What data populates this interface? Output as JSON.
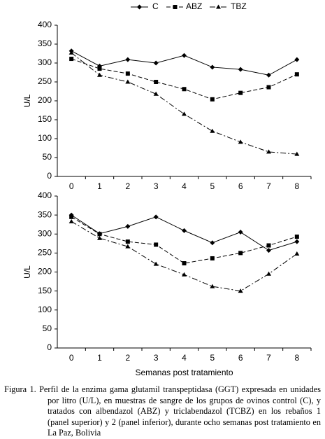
{
  "chart_data": [
    {
      "type": "line",
      "categories": [
        "0",
        "1",
        "2",
        "3",
        "4",
        "5",
        "6",
        "7",
        "8"
      ],
      "ylabel": "U/L",
      "ylim": [
        0,
        400
      ],
      "yticks": [
        0,
        50,
        100,
        150,
        200,
        250,
        300,
        350,
        400
      ],
      "series": [
        {
          "name": "C",
          "color": "#000000",
          "marker": "diamond",
          "dash": "solid",
          "values": [
            332,
            292,
            309,
            300,
            320,
            289,
            283,
            268,
            309
          ]
        },
        {
          "name": "ABZ",
          "color": "#000000",
          "marker": "square",
          "dash": "dashed",
          "values": [
            311,
            285,
            272,
            250,
            231,
            204,
            221,
            236,
            270
          ]
        },
        {
          "name": "TBZ",
          "color": "#000000",
          "marker": "triangle",
          "dash": "dashdot",
          "values": [
            327,
            268,
            250,
            218,
            165,
            120,
            91,
            65,
            59
          ]
        }
      ]
    },
    {
      "type": "line",
      "categories": [
        "0",
        "1",
        "2",
        "3",
        "4",
        "5",
        "6",
        "7",
        "8"
      ],
      "ylabel": "U/L",
      "xlabel": "Semanas post tratamiento",
      "ylim": [
        0,
        400
      ],
      "yticks": [
        0,
        50,
        100,
        150,
        200,
        250,
        300,
        350,
        400
      ],
      "series": [
        {
          "color": "#000000",
          "marker": "diamond",
          "dash": "solid",
          "values": [
            350,
            301,
            320,
            345,
            309,
            277,
            305,
            257,
            280
          ]
        },
        {
          "color": "#000000",
          "marker": "square",
          "dash": "dashed",
          "values": [
            345,
            300,
            280,
            272,
            223,
            236,
            250,
            270,
            293
          ]
        },
        {
          "color": "#000000",
          "marker": "triangle",
          "dash": "dashdot",
          "values": [
            333,
            289,
            267,
            221,
            193,
            162,
            150,
            195,
            248
          ]
        }
      ]
    }
  ],
  "caption": "Figura 1. Perfil de la enzima gama glutamil transpeptidasa (GGT) expresada en unidades por litro (U/L), en muestras de sangre de los grupos de ovinos control (C), y tratados con albendazol (ABZ) y triclabendazol (TCBZ) en los rebaños 1 (panel superior) y 2 (panel inferior), durante ocho semanas post tratamiento en La Paz, Bolivia"
}
